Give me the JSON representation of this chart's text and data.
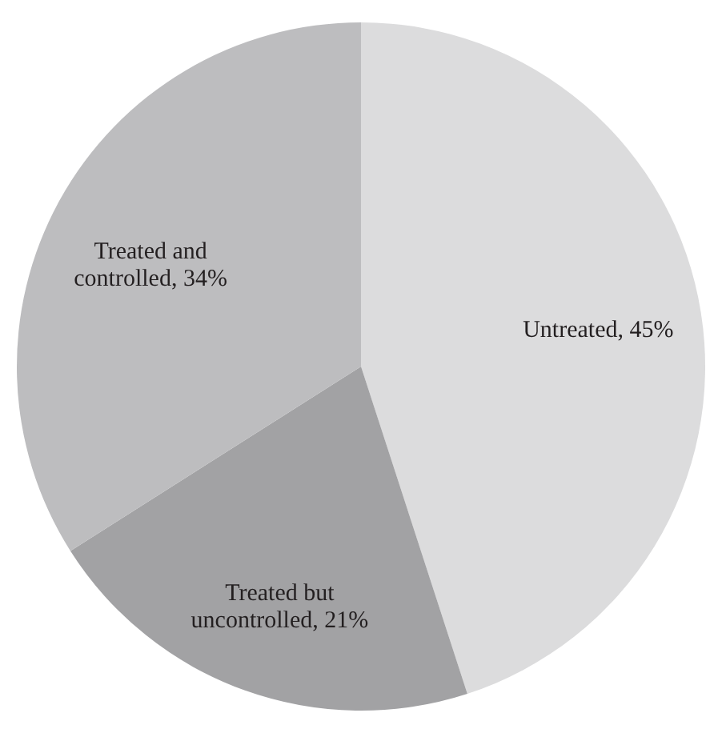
{
  "chart_data": {
    "type": "pie",
    "categories": [
      "Untreated, 45%",
      "Treated but uncontrolled, 21%",
      "Treated and controlled, 34%"
    ],
    "values": [
      45,
      21,
      34
    ],
    "colors": [
      "#dcdcdd",
      "#a2a2a4",
      "#bdbdbf"
    ],
    "legend": false
  }
}
